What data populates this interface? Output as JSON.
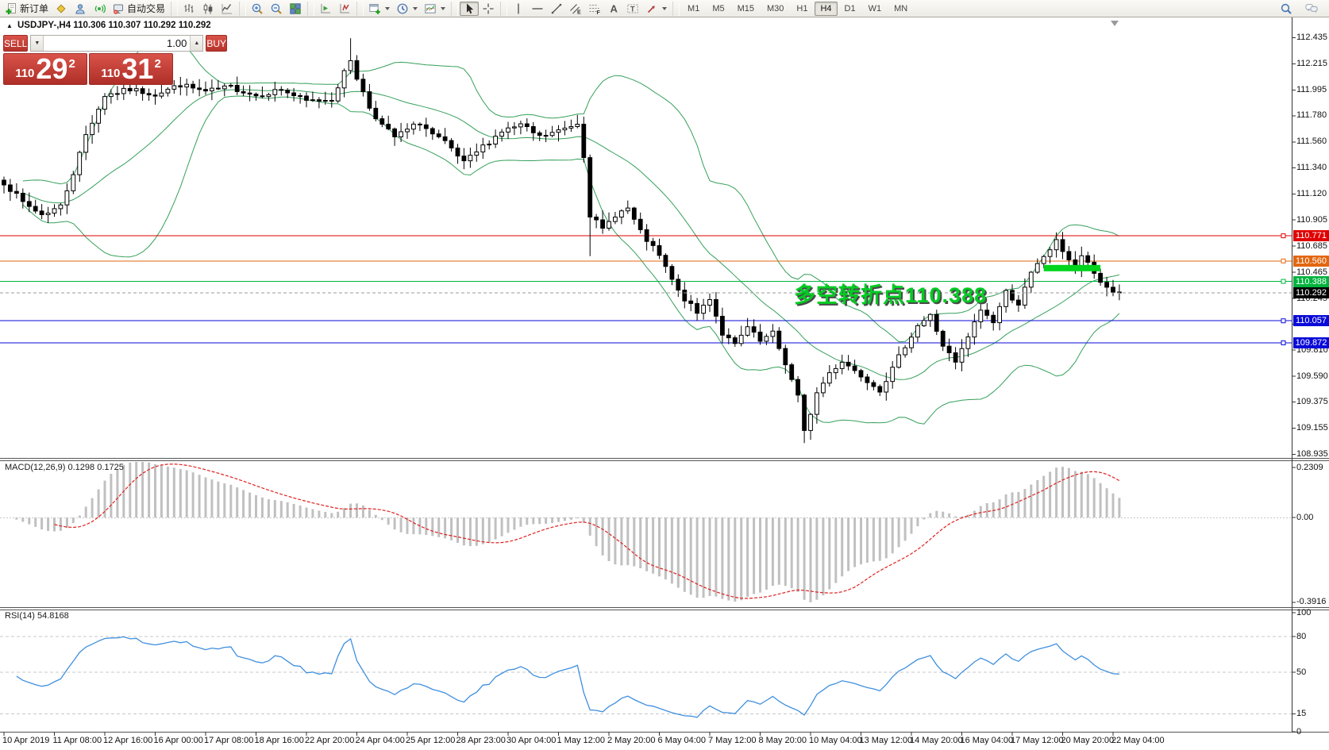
{
  "window": {
    "title": "USDJPY-,H4 110.306 110.307 110.292 110.292"
  },
  "toolbar": {
    "groups": [
      {
        "items": [
          {
            "icon": "new-order",
            "label": "新订单"
          },
          {
            "icon": "profile"
          },
          {
            "icon": "user"
          },
          {
            "icon": "signal"
          },
          {
            "icon": "autotrade",
            "label": "自动交易"
          }
        ]
      },
      {
        "items": [
          {
            "icon": "chart-bars"
          },
          {
            "icon": "chart-candles"
          },
          {
            "icon": "chart-line"
          }
        ]
      },
      {
        "items": [
          {
            "icon": "zoom-in"
          },
          {
            "icon": "zoom-out"
          },
          {
            "icon": "tile-windows"
          }
        ]
      },
      {
        "items": [
          {
            "icon": "arrange-charts"
          },
          {
            "icon": "arrange-windows"
          }
        ]
      },
      {
        "items": [
          {
            "icon": "new-chart",
            "dropdown": true
          },
          {
            "icon": "period",
            "dropdown": true
          },
          {
            "icon": "template",
            "dropdown": true
          }
        ]
      },
      {
        "items": [
          {
            "icon": "cursor",
            "active": true
          },
          {
            "icon": "crosshair"
          }
        ]
      },
      {
        "items": [
          {
            "icon": "vline"
          },
          {
            "icon": "hline"
          },
          {
            "icon": "trendline"
          },
          {
            "icon": "channel"
          },
          {
            "icon": "fibonacci"
          },
          {
            "icon": "text"
          },
          {
            "icon": "text-label"
          },
          {
            "icon": "arrows",
            "dropdown": true
          }
        ]
      }
    ],
    "timeframes": [
      "M1",
      "M5",
      "M15",
      "M30",
      "H1",
      "H4",
      "D1",
      "W1",
      "MN"
    ],
    "active_timeframe": "H4"
  },
  "trade_panel": {
    "sell_label": "SELL",
    "buy_label": "BUY",
    "volume": "1.00",
    "sell_price": {
      "prefix": "110",
      "big": "29",
      "sup": "2"
    },
    "buy_price": {
      "prefix": "110",
      "big": "31",
      "sup": "2"
    }
  },
  "annotation": {
    "text": "多空转折点110.388"
  },
  "chart_data": {
    "type": "candlestick",
    "symbol": "USDJPY-",
    "period": "H4",
    "ohlc_display": {
      "open": "110.306",
      "high": "110.307",
      "low": "110.292",
      "close": "110.292"
    },
    "price_axis": {
      "ticks": [
        112.435,
        112.215,
        111.995,
        111.78,
        111.56,
        111.34,
        111.12,
        110.905,
        110.685,
        110.465,
        110.245,
        110.03,
        109.81,
        109.59,
        109.375,
        109.155,
        108.935
      ],
      "visible_range": [
        108.905,
        112.605
      ]
    },
    "date_ticks": [
      "10 Apr 2019",
      "11 Apr 08:00",
      "12 Apr 16:00",
      "16 Apr 00:00",
      "17 Apr 08:00",
      "18 Apr 16:00",
      "22 Apr 20:00",
      "24 Apr 04:00",
      "25 Apr 12:00",
      "28 Apr 23:00",
      "30 Apr 04:00",
      "1 May 12:00",
      "2 May 20:00",
      "6 May 04:00",
      "7 May 12:00",
      "8 May 20:00",
      "10 May 04:00",
      "13 May 12:00",
      "14 May 20:00",
      "16 May 04:00",
      "17 May 12:00",
      "20 May 20:00",
      "22 May 04:00"
    ],
    "bars_per_tick": 8,
    "bar_count": 178,
    "close_anchors": [
      [
        0,
        111.22
      ],
      [
        3,
        111.05
      ],
      [
        6,
        110.95
      ],
      [
        9,
        111.02
      ],
      [
        11,
        111.3
      ],
      [
        13,
        111.62
      ],
      [
        16,
        111.95
      ],
      [
        20,
        112.0
      ],
      [
        24,
        111.96
      ],
      [
        28,
        112.04
      ],
      [
        32,
        111.98
      ],
      [
        36,
        112.02
      ],
      [
        40,
        111.95
      ],
      [
        44,
        112.0
      ],
      [
        48,
        111.9
      ],
      [
        52,
        111.92
      ],
      [
        55,
        112.25
      ],
      [
        56,
        112.1
      ],
      [
        58,
        111.85
      ],
      [
        60,
        111.7
      ],
      [
        62,
        111.6
      ],
      [
        64,
        111.66
      ],
      [
        66,
        111.72
      ],
      [
        68,
        111.62
      ],
      [
        70,
        111.55
      ],
      [
        73,
        111.38
      ],
      [
        76,
        111.52
      ],
      [
        79,
        111.65
      ],
      [
        82,
        111.7
      ],
      [
        85,
        111.6
      ],
      [
        88,
        111.65
      ],
      [
        91,
        111.72
      ],
      [
        92,
        111.45
      ],
      [
        93,
        110.95
      ],
      [
        95,
        110.82
      ],
      [
        97,
        110.95
      ],
      [
        99,
        111.0
      ],
      [
        101,
        110.8
      ],
      [
        104,
        110.6
      ],
      [
        107,
        110.3
      ],
      [
        110,
        110.12
      ],
      [
        112,
        110.25
      ],
      [
        114,
        109.95
      ],
      [
        116,
        109.85
      ],
      [
        118,
        110.0
      ],
      [
        120,
        109.88
      ],
      [
        122,
        109.95
      ],
      [
        124,
        109.7
      ],
      [
        126,
        109.42
      ],
      [
        127,
        109.12
      ],
      [
        129,
        109.45
      ],
      [
        131,
        109.62
      ],
      [
        133,
        109.72
      ],
      [
        136,
        109.6
      ],
      [
        139,
        109.48
      ],
      [
        141,
        109.65
      ],
      [
        143,
        109.85
      ],
      [
        145,
        110.02
      ],
      [
        147,
        110.1
      ],
      [
        149,
        109.85
      ],
      [
        151,
        109.7
      ],
      [
        153,
        109.92
      ],
      [
        155,
        110.15
      ],
      [
        157,
        110.05
      ],
      [
        159,
        110.3
      ],
      [
        161,
        110.2
      ],
      [
        163,
        110.45
      ],
      [
        165,
        110.6
      ],
      [
        167,
        110.72
      ],
      [
        168,
        110.65
      ],
      [
        170,
        110.5
      ],
      [
        171,
        110.6
      ],
      [
        172,
        110.55
      ],
      [
        173,
        110.45
      ],
      [
        174,
        110.38
      ],
      [
        175,
        110.34
      ],
      [
        176,
        110.3
      ],
      [
        177,
        110.292
      ]
    ],
    "spikes": [
      {
        "i": 55,
        "high": 112.43
      },
      {
        "i": 93,
        "low": 110.6
      },
      {
        "i": 127,
        "low": 109.03
      },
      {
        "i": 128,
        "low": 109.1
      }
    ],
    "bollinger": {
      "period": 20,
      "deviation": 2,
      "color": "#35a05a"
    },
    "levels": [
      {
        "price": 110.771,
        "label": "110.771",
        "color": "#e00000"
      },
      {
        "price": 110.56,
        "label": "110.560",
        "color": "#e2670f"
      },
      {
        "price": 110.388,
        "label": "110.388",
        "color": "#00b33e"
      },
      {
        "price": 110.057,
        "label": "110.057",
        "color": "#0a0ad8"
      },
      {
        "price": 109.872,
        "label": "109.872",
        "color": "#0a0ad8"
      }
    ],
    "current_price": {
      "value": 110.292,
      "label": "110.292",
      "tag_bg": "#000000",
      "line_color": "#9a9a9a"
    },
    "highlight_bar": {
      "from_bar": 165,
      "to_bar": 174,
      "price": 110.5,
      "thickness": 8,
      "color": "#00d41c"
    },
    "macd": {
      "label": "MACD(12,26,9)",
      "value": "0.1298",
      "signal_value": "0.1725",
      "axis_ticks": [
        "0.2309",
        "0.00",
        "-0.3916"
      ],
      "histogram_color": "#c0c0c0",
      "signal_color": "#e02020"
    },
    "rsi": {
      "label": "RSI(14)",
      "value": "54.8168",
      "axis_ticks": [
        "100",
        "80",
        "50",
        "15",
        "0"
      ],
      "level_lines": [
        80,
        50,
        15
      ],
      "line_color": "#3f8fde"
    }
  }
}
